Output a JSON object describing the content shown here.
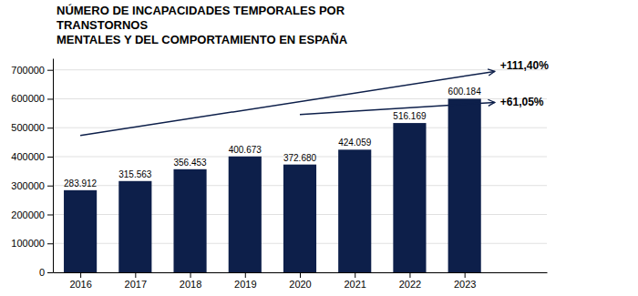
{
  "chart_data": {
    "type": "bar",
    "title": "NÚMERO DE INCAPACIDADES TEMPORALES POR\nTRANSTORNOS\nMENTALES Y DEL COMPORTAMIENTO EN ESPAÑA",
    "x": [
      2016,
      2017,
      2018,
      2019,
      2020,
      2021,
      2022,
      2023
    ],
    "values": [
      283912,
      315563,
      356453,
      400673,
      372680,
      424059,
      516169,
      600184
    ],
    "value_labels": [
      "283.912",
      "315.563",
      "356.453",
      "400.673",
      "372.680",
      "424.059",
      "516.169",
      "600.184"
    ],
    "data_labels": true,
    "color": "#0d1f4a",
    "xlim": [
      2015.5,
      2024.5
    ],
    "xticks": [
      2016,
      2017,
      2018,
      2019,
      2020,
      2021,
      2022,
      2023
    ],
    "ylim": [
      0,
      740000
    ],
    "yticks": [
      0,
      100000,
      200000,
      300000,
      400000,
      500000,
      600000,
      700000
    ],
    "grid": true,
    "annotations": [
      "+111,40%",
      "+61,05%"
    ]
  }
}
